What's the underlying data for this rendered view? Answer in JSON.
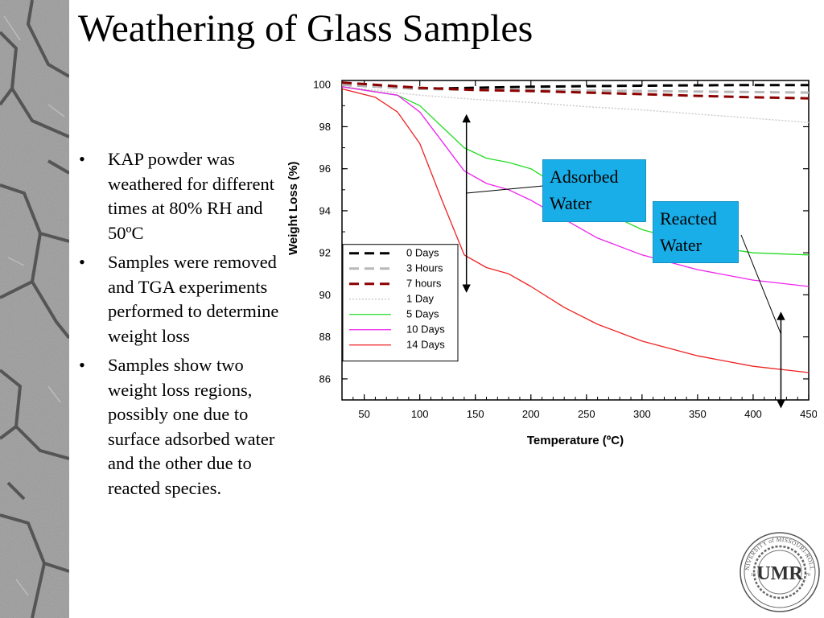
{
  "slide": {
    "title": "Weathering of  Glass Samples",
    "bullets": [
      "KAP powder was weathered for different times at 80% RH and 50ºC",
      "Samples were removed and TGA experiments performed to determine weight loss",
      "Samples show two weight loss regions, possibly one due to surface adsorbed water and the other due to reacted species."
    ]
  },
  "callouts": {
    "adsorbed": "Adsorbed Water",
    "reacted": "Reacted Water"
  },
  "seal": {
    "initials": "UMR",
    "ring_text": "UNIVERSITY of MISSOURI-ROLLA"
  },
  "colors": {
    "callout_fill": "#1aaee8",
    "texture_base": "#9a9a9a",
    "texture_crack": "#555555"
  },
  "chart_data": {
    "type": "line",
    "title": "",
    "xlabel": "Temperature (ºC)",
    "ylabel": "Weight Loss (%)",
    "xlim": [
      30,
      450
    ],
    "ylim": [
      85,
      100.2
    ],
    "xticks": [
      50,
      100,
      150,
      200,
      250,
      300,
      350,
      400,
      450
    ],
    "yticks": [
      86,
      88,
      90,
      92,
      94,
      96,
      98,
      100
    ],
    "legend_position": "lower-left",
    "grid": false,
    "series": [
      {
        "name": "0 Days",
        "color": "#000000",
        "style": "dashed",
        "width": 3,
        "points": [
          [
            30,
            100.0
          ],
          [
            100,
            99.8
          ],
          [
            150,
            99.85
          ],
          [
            200,
            99.9
          ],
          [
            250,
            99.93
          ],
          [
            300,
            99.95
          ],
          [
            350,
            99.97
          ],
          [
            400,
            99.98
          ],
          [
            450,
            99.98
          ]
        ]
      },
      {
        "name": "3 Hours",
        "color": "#b8b8b8",
        "style": "dashed",
        "width": 3,
        "points": [
          [
            30,
            100.0
          ],
          [
            100,
            99.8
          ],
          [
            150,
            99.75
          ],
          [
            200,
            99.75
          ],
          [
            250,
            99.72
          ],
          [
            300,
            99.7
          ],
          [
            350,
            99.67
          ],
          [
            400,
            99.65
          ],
          [
            450,
            99.62
          ]
        ]
      },
      {
        "name": "7 hours",
        "color": "#8b0000",
        "style": "dashed",
        "width": 3,
        "points": [
          [
            30,
            100.1
          ],
          [
            100,
            99.85
          ],
          [
            150,
            99.75
          ],
          [
            200,
            99.7
          ],
          [
            250,
            99.62
          ],
          [
            300,
            99.55
          ],
          [
            350,
            99.47
          ],
          [
            400,
            99.4
          ],
          [
            450,
            99.35
          ]
        ]
      },
      {
        "name": "1 Day",
        "color": "#cccccc",
        "style": "dotted",
        "width": 1.5,
        "points": [
          [
            30,
            99.9
          ],
          [
            100,
            99.5
          ],
          [
            150,
            99.3
          ],
          [
            200,
            99.15
          ],
          [
            250,
            98.95
          ],
          [
            300,
            98.8
          ],
          [
            350,
            98.6
          ],
          [
            400,
            98.4
          ],
          [
            450,
            98.2
          ]
        ]
      },
      {
        "name": "5 Days",
        "color": "#22dd22",
        "style": "solid",
        "width": 1.3,
        "points": [
          [
            30,
            99.9
          ],
          [
            80,
            99.5
          ],
          [
            100,
            99.0
          ],
          [
            120,
            98.0
          ],
          [
            140,
            97.0
          ],
          [
            160,
            96.5
          ],
          [
            180,
            96.3
          ],
          [
            200,
            96.0
          ],
          [
            230,
            95.0
          ],
          [
            260,
            94.1
          ],
          [
            300,
            93.1
          ],
          [
            350,
            92.4
          ],
          [
            400,
            92.0
          ],
          [
            450,
            91.9
          ]
        ]
      },
      {
        "name": "10 Days",
        "color": "#ee22ee",
        "style": "solid",
        "width": 1.3,
        "points": [
          [
            30,
            99.9
          ],
          [
            80,
            99.5
          ],
          [
            100,
            98.7
          ],
          [
            120,
            97.3
          ],
          [
            140,
            95.9
          ],
          [
            160,
            95.3
          ],
          [
            180,
            95.0
          ],
          [
            200,
            94.5
          ],
          [
            230,
            93.6
          ],
          [
            260,
            92.7
          ],
          [
            300,
            91.9
          ],
          [
            350,
            91.2
          ],
          [
            400,
            90.7
          ],
          [
            450,
            90.4
          ]
        ]
      },
      {
        "name": "14 Days",
        "color": "#ee2222",
        "style": "solid",
        "width": 1.3,
        "points": [
          [
            30,
            99.8
          ],
          [
            60,
            99.4
          ],
          [
            80,
            98.7
          ],
          [
            100,
            97.2
          ],
          [
            120,
            94.5
          ],
          [
            140,
            91.9
          ],
          [
            160,
            91.3
          ],
          [
            180,
            91.0
          ],
          [
            200,
            90.4
          ],
          [
            230,
            89.4
          ],
          [
            260,
            88.6
          ],
          [
            300,
            87.8
          ],
          [
            350,
            87.1
          ],
          [
            400,
            86.6
          ],
          [
            450,
            86.3
          ]
        ]
      }
    ],
    "annotations": [
      {
        "type": "double-arrow",
        "x": 142,
        "y_from": 98.4,
        "y_to": 90.3
      },
      {
        "type": "double-arrow",
        "x": 425,
        "y_from": 89.0,
        "y_to": 84.8
      }
    ]
  }
}
